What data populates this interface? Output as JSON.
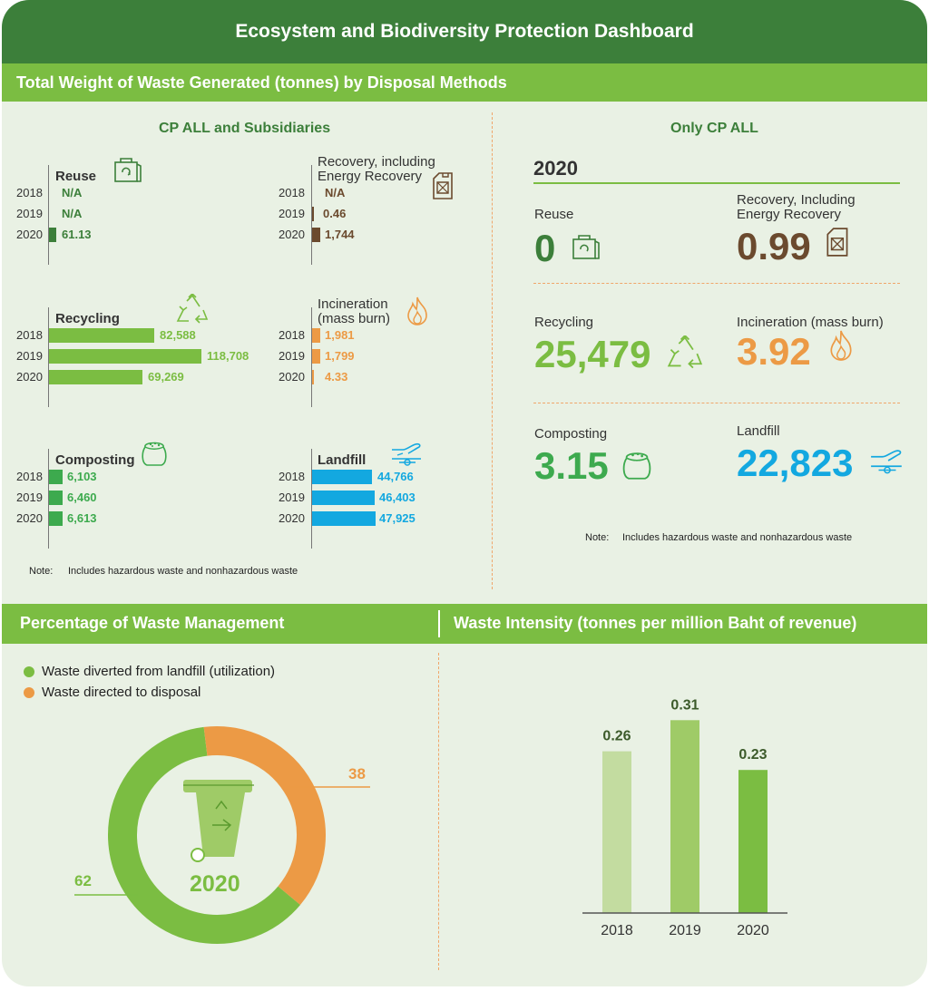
{
  "title": "Ecosystem and Biodiversity Protection Dashboard",
  "section1": {
    "heading": "Total Weight of Waste Generated (tonnes) by Disposal Methods",
    "left_title": "CP ALL and Subsidiaries",
    "right_title": "Only CP ALL",
    "years": [
      "2018",
      "2019",
      "2020"
    ],
    "note_label": "Note:",
    "note_text": "Includes hazardous waste and nonhazardous waste"
  },
  "subsidiaries": {
    "reuse": {
      "label": "Reuse",
      "values": [
        "N/A",
        "N/A",
        "61.13"
      ],
      "color": "#3c7f3a"
    },
    "recovery": {
      "label_line1": "Recovery, including",
      "label_line2": "Energy Recovery",
      "values": [
        "N/A",
        "0.46",
        "1,744"
      ],
      "color": "#6b4a2e"
    },
    "recycling": {
      "label": "Recycling",
      "values": [
        "82,588",
        "118,708",
        "69,269"
      ],
      "color": "#7bbd42"
    },
    "incineration": {
      "label_line1": "Incineration",
      "label_line2": "(mass burn)",
      "values": [
        "1,981",
        "1,799",
        "4.33"
      ],
      "color": "#ec9a45"
    },
    "composting": {
      "label": "Composting",
      "values": [
        "6,103",
        "6,460",
        "6,613"
      ],
      "color": "#3daa4e"
    },
    "landfill": {
      "label": "Landfill",
      "values": [
        "44,766",
        "46,403",
        "47,925"
      ],
      "color": "#13a8e0"
    }
  },
  "cpall": {
    "year": "2020",
    "reuse": {
      "label": "Reuse",
      "value": "0"
    },
    "recovery": {
      "label_line1": "Recovery, Including",
      "label_line2": "Energy Recovery",
      "value": "0.99"
    },
    "recycling": {
      "label": "Recycling",
      "value": "25,479"
    },
    "incineration": {
      "label": "Incineration (mass burn)",
      "value": "3.92"
    },
    "composting": {
      "label": "Composting",
      "value": "3.15"
    },
    "landfill": {
      "label": "Landfill",
      "value": "22,823"
    }
  },
  "section2": {
    "left_heading": "Percentage of Waste Management",
    "right_heading": "Waste Intensity (tonnes per million Baht of revenue)",
    "legend": [
      {
        "label": "Waste diverted from landfill (utilization)",
        "color": "#7bbd42"
      },
      {
        "label": "Waste directed to disposal",
        "color": "#ec9a45"
      }
    ],
    "donut_year": "2020",
    "donut_label_green": "62",
    "donut_label_orange": "38"
  },
  "chart_data": [
    {
      "type": "bar",
      "title": "Total Weight of Waste Generated (tonnes) by Disposal Methods",
      "subtitle": "CP ALL and Subsidiaries",
      "categories": [
        "2018",
        "2019",
        "2020"
      ],
      "series": [
        {
          "name": "Reuse",
          "values": [
            null,
            null,
            61.13
          ]
        },
        {
          "name": "Recovery, including Energy Recovery",
          "values": [
            null,
            0.46,
            1744
          ]
        },
        {
          "name": "Recycling",
          "values": [
            82588,
            118708,
            69269
          ]
        },
        {
          "name": "Incineration (mass burn)",
          "values": [
            1981,
            1799,
            4.33
          ]
        },
        {
          "name": "Composting",
          "values": [
            6103,
            6460,
            6613
          ]
        },
        {
          "name": "Landfill",
          "values": [
            44766,
            46403,
            47925
          ]
        }
      ]
    },
    {
      "type": "pie",
      "title": "Percentage of Waste Management",
      "labels": [
        "Waste diverted from landfill (utilization)",
        "Waste directed to disposal"
      ],
      "values": [
        62,
        38
      ],
      "colors": [
        "#7bbd42",
        "#ec9a45"
      ]
    },
    {
      "type": "bar",
      "title": "Waste Intensity (tonnes per million Baht of revenue)",
      "categories": [
        "2018",
        "2019",
        "2020"
      ],
      "values": [
        0.26,
        0.31,
        0.23
      ],
      "value_labels": [
        "0.26",
        "0.31",
        "0.23"
      ],
      "colors": [
        "#c3dca0",
        "#9fcb67",
        "#7bbd42"
      ],
      "ylim": [
        0,
        0.36
      ]
    }
  ]
}
